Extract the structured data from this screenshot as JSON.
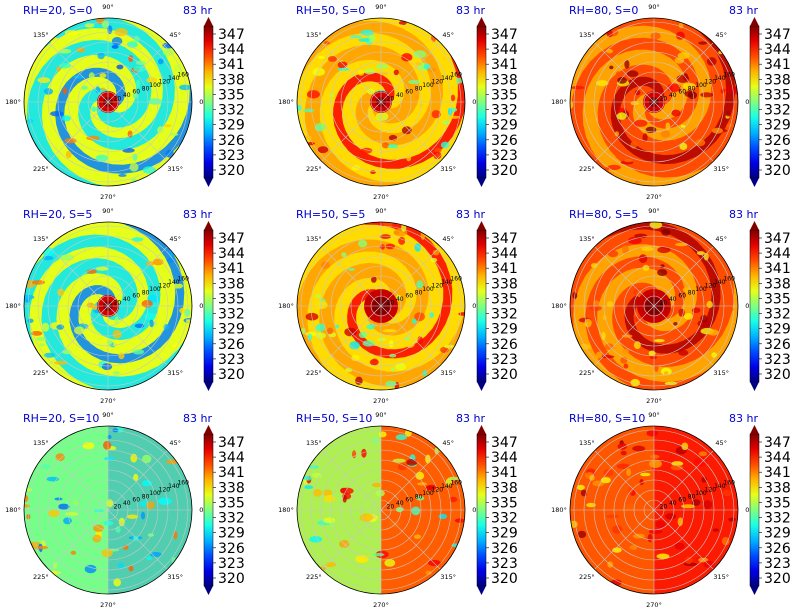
{
  "colors": {
    "panel_title": "#0000cc",
    "time_label": "#0000cc",
    "colormap": "jet"
  },
  "colorbar": {
    "ticks": [
      "347",
      "344",
      "341",
      "338",
      "335",
      "332",
      "329",
      "326",
      "323",
      "320"
    ],
    "min": 320,
    "max": 350
  },
  "polar_axes": {
    "angle_labels": [
      "90°",
      "45°",
      "0°",
      "315°",
      "270°",
      "225°",
      "180°",
      "135°"
    ],
    "radial_labels": [
      "20",
      "40",
      "60",
      "80",
      "100",
      "120",
      "140",
      "160"
    ]
  },
  "chart_data": [
    {
      "type": "heatmap",
      "title": "RH=20, S=0",
      "time": "83 hr",
      "pattern": "spiral",
      "core": "compact"
    },
    {
      "type": "heatmap",
      "title": "RH=50, S=0",
      "time": "83 hr",
      "pattern": "spiral",
      "core": "compact"
    },
    {
      "type": "heatmap",
      "title": "RH=80, S=0",
      "time": "83 hr",
      "pattern": "spiral",
      "core": "compact"
    },
    {
      "type": "heatmap",
      "title": "RH=20, S=5",
      "time": "83 hr",
      "pattern": "spiral",
      "core": "compact"
    },
    {
      "type": "heatmap",
      "title": "RH=50, S=5",
      "time": "83 hr",
      "pattern": "eye",
      "core": "large"
    },
    {
      "type": "heatmap",
      "title": "RH=80, S=5",
      "time": "83 hr",
      "pattern": "eye",
      "core": "large"
    },
    {
      "type": "heatmap",
      "title": "RH=20, S=10",
      "time": "83 hr",
      "pattern": "sheared",
      "core": "none"
    },
    {
      "type": "heatmap",
      "title": "RH=50, S=10",
      "time": "83 hr",
      "pattern": "sheared",
      "core": "none"
    },
    {
      "type": "heatmap",
      "title": "RH=80, S=10",
      "time": "83 hr",
      "pattern": "sheared",
      "core": "none"
    }
  ]
}
